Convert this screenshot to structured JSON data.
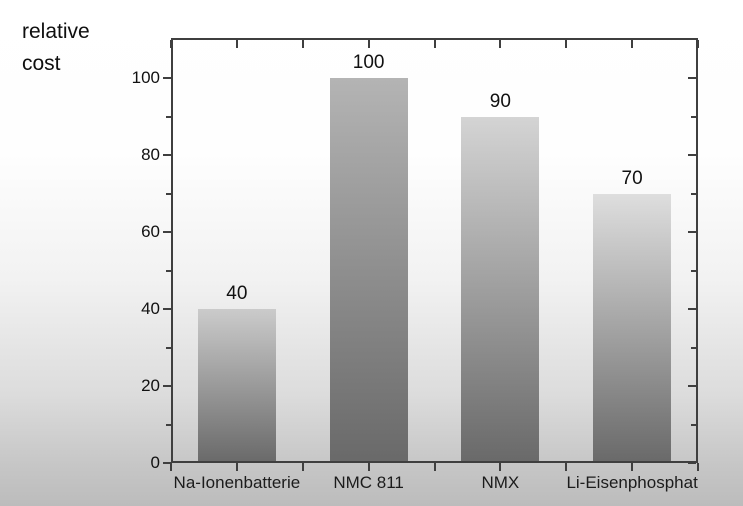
{
  "chart_data": {
    "type": "bar",
    "title": "relative cost",
    "categories": [
      "Na-Ionenbatterie",
      "NMC 811",
      "NMX",
      "Li-Eisenphosphat"
    ],
    "values": [
      40,
      100,
      90,
      70
    ],
    "value_labels": [
      "40",
      "100",
      "90",
      "70"
    ],
    "xlabel": "",
    "ylabel": "",
    "ylim": [
      0,
      110
    ],
    "yticks_major": [
      0,
      20,
      40,
      60,
      80,
      100
    ],
    "yticks_minor": [
      10,
      30,
      50,
      70,
      90
    ],
    "x_tick_divisions": 8,
    "grid": false,
    "legend": "none",
    "axis_color": "#3f3f3f",
    "text_color": "#111111",
    "bar_fill": {
      "style": "vertical-gradient",
      "top_colors": [
        "#cbcbcb",
        "#b4b4b4",
        "#d4d4d4",
        "#dedede"
      ],
      "bottom_color": "#696969"
    },
    "background": {
      "top": "#ffffff",
      "bottom": "#bcbcbc"
    }
  }
}
